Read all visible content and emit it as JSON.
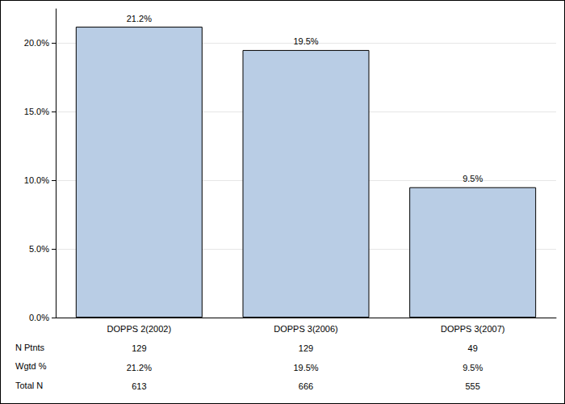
{
  "chart_data": {
    "type": "bar",
    "categories": [
      "DOPPS 2(2002)",
      "DOPPS 3(2006)",
      "DOPPS 3(2007)"
    ],
    "values": [
      21.2,
      19.5,
      9.5
    ],
    "value_labels": [
      "21.2%",
      "19.5%",
      "9.5%"
    ],
    "data_labels": true,
    "color": "#b9cde5",
    "ylim": [
      0,
      22.5
    ],
    "yticks": [
      {
        "value": 0,
        "label": "0.0%"
      },
      {
        "value": 5,
        "label": "5.0%"
      },
      {
        "value": 10,
        "label": "10.0%"
      },
      {
        "value": 15,
        "label": "15.0%"
      },
      {
        "value": 20,
        "label": "20.0%"
      }
    ],
    "grid": true,
    "table": [
      {
        "label": "N Ptnts",
        "values": [
          129,
          129,
          49
        ]
      },
      {
        "label": "Wgtd %",
        "values": [
          21.2,
          19.5,
          9.5
        ],
        "value_labels": [
          "21.2%",
          "19.5%",
          "9.5%"
        ]
      },
      {
        "label": "Total N",
        "values": [
          613,
          666,
          555
        ]
      }
    ]
  }
}
